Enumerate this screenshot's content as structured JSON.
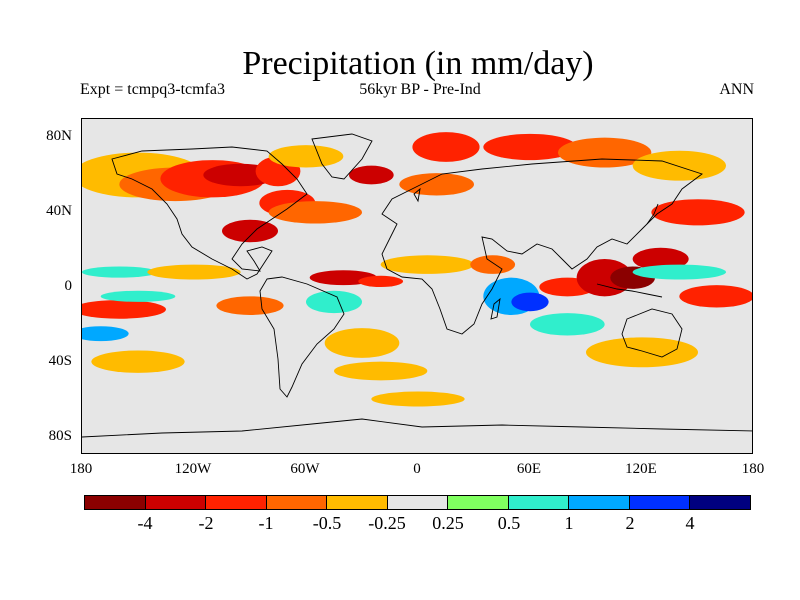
{
  "title": "Precipitation (in mm/day)",
  "subtitle": {
    "left": "Expt = tcmpq3-tcmfa3",
    "center": "56kyr BP - Pre-Ind",
    "right": "ANN"
  },
  "chart_data": {
    "type": "heatmap",
    "title": "Precipitation (in mm/day)",
    "projection": "cylindrical-equidistant",
    "x_range": [
      -180,
      180
    ],
    "y_range": [
      -90,
      90
    ],
    "x_ticks": [
      {
        "value": -180,
        "label": "180"
      },
      {
        "value": -120,
        "label": "120W"
      },
      {
        "value": -60,
        "label": "60W"
      },
      {
        "value": 0,
        "label": "0"
      },
      {
        "value": 60,
        "label": "60E"
      },
      {
        "value": 120,
        "label": "120E"
      },
      {
        "value": 180,
        "label": "180"
      }
    ],
    "y_ticks": [
      {
        "value": 80,
        "label": "80N"
      },
      {
        "value": 40,
        "label": "40N"
      },
      {
        "value": 0,
        "label": "0"
      },
      {
        "value": -40,
        "label": "40S"
      },
      {
        "value": -80,
        "label": "80S"
      }
    ],
    "colorbar": {
      "colors": [
        "#8b0000",
        "#cc0000",
        "#ff2200",
        "#ff6600",
        "#ffbb00",
        "#e6e6e6",
        "#80ff60",
        "#30eecc",
        "#00a8ff",
        "#0030ff",
        "#000080"
      ],
      "labels": [
        "-4",
        "-2",
        "-1",
        "-0.5",
        "-0.25",
        "0.25",
        "0.5",
        "1",
        "2",
        "4"
      ]
    },
    "regions": [
      {
        "lon": -150,
        "lat": 60,
        "rx": 35,
        "ry": 12,
        "class": "-0.25"
      },
      {
        "lon": -130,
        "lat": 55,
        "rx": 30,
        "ry": 9,
        "class": "-0.5"
      },
      {
        "lon": -110,
        "lat": 58,
        "rx": 28,
        "ry": 10,
        "class": "-1"
      },
      {
        "lon": -95,
        "lat": 60,
        "rx": 20,
        "ry": 6,
        "class": "-2"
      },
      {
        "lon": -75,
        "lat": 62,
        "rx": 12,
        "ry": 8,
        "class": "-1"
      },
      {
        "lon": -70,
        "lat": 45,
        "rx": 15,
        "ry": 7,
        "class": "-1"
      },
      {
        "lon": -55,
        "lat": 40,
        "rx": 25,
        "ry": 6,
        "class": "-0.5"
      },
      {
        "lon": -90,
        "lat": 30,
        "rx": 15,
        "ry": 6,
        "class": "-2"
      },
      {
        "lon": -60,
        "lat": 70,
        "rx": 20,
        "ry": 6,
        "class": "-0.25"
      },
      {
        "lon": -25,
        "lat": 60,
        "rx": 12,
        "ry": 5,
        "class": "-2"
      },
      {
        "lon": 15,
        "lat": 75,
        "rx": 18,
        "ry": 8,
        "class": "-1"
      },
      {
        "lon": 60,
        "lat": 75,
        "rx": 25,
        "ry": 7,
        "class": "-1"
      },
      {
        "lon": 100,
        "lat": 72,
        "rx": 25,
        "ry": 8,
        "class": "-0.5"
      },
      {
        "lon": 140,
        "lat": 65,
        "rx": 25,
        "ry": 8,
        "class": "-0.25"
      },
      {
        "lon": 10,
        "lat": 55,
        "rx": 20,
        "ry": 6,
        "class": "-0.5"
      },
      {
        "lon": -160,
        "lat": 8,
        "rx": 20,
        "ry": 3,
        "class": "0.5"
      },
      {
        "lon": -120,
        "lat": 8,
        "rx": 25,
        "ry": 4,
        "class": "-0.25"
      },
      {
        "lon": -160,
        "lat": -12,
        "rx": 25,
        "ry": 5,
        "class": "-1"
      },
      {
        "lon": -150,
        "lat": -5,
        "rx": 20,
        "ry": 3,
        "class": "0.5"
      },
      {
        "lon": -90,
        "lat": -10,
        "rx": 18,
        "ry": 5,
        "class": "-0.5"
      },
      {
        "lon": -40,
        "lat": 5,
        "rx": 18,
        "ry": 4,
        "class": "-2"
      },
      {
        "lon": -20,
        "lat": 3,
        "rx": 12,
        "ry": 3,
        "class": "-1"
      },
      {
        "lon": -45,
        "lat": -8,
        "rx": 15,
        "ry": 6,
        "class": "0.5"
      },
      {
        "lon": -30,
        "lat": -30,
        "rx": 20,
        "ry": 8,
        "class": "-0.25"
      },
      {
        "lon": 5,
        "lat": 12,
        "rx": 25,
        "ry": 5,
        "class": "-0.25"
      },
      {
        "lon": 40,
        "lat": 12,
        "rx": 12,
        "ry": 5,
        "class": "-0.5"
      },
      {
        "lon": 50,
        "lat": -5,
        "rx": 15,
        "ry": 10,
        "class": "1"
      },
      {
        "lon": 60,
        "lat": -8,
        "rx": 10,
        "ry": 5,
        "class": "2"
      },
      {
        "lon": 80,
        "lat": 0,
        "rx": 15,
        "ry": 5,
        "class": "-1"
      },
      {
        "lon": 100,
        "lat": 5,
        "rx": 15,
        "ry": 10,
        "class": "-2"
      },
      {
        "lon": 115,
        "lat": 5,
        "rx": 12,
        "ry": 6,
        "class": "-4"
      },
      {
        "lon": 130,
        "lat": 15,
        "rx": 15,
        "ry": 6,
        "class": "-2"
      },
      {
        "lon": 140,
        "lat": 8,
        "rx": 25,
        "ry": 4,
        "class": "0.5"
      },
      {
        "lon": 160,
        "lat": -5,
        "rx": 20,
        "ry": 6,
        "class": "-1"
      },
      {
        "lon": 150,
        "lat": 40,
        "rx": 25,
        "ry": 7,
        "class": "-1"
      },
      {
        "lon": 120,
        "lat": -35,
        "rx": 30,
        "ry": 8,
        "class": "-0.25"
      },
      {
        "lon": 0,
        "lat": -60,
        "rx": 25,
        "ry": 4,
        "class": "-0.25"
      },
      {
        "lon": -150,
        "lat": -40,
        "rx": 25,
        "ry": 6,
        "class": "-0.25"
      },
      {
        "lon": -170,
        "lat": -25,
        "rx": 15,
        "ry": 4,
        "class": "1"
      },
      {
        "lon": -20,
        "lat": -45,
        "rx": 25,
        "ry": 5,
        "class": "-0.25"
      },
      {
        "lon": 80,
        "lat": -20,
        "rx": 20,
        "ry": 6,
        "class": "0.5"
      }
    ],
    "xlabel": "",
    "ylabel": ""
  }
}
